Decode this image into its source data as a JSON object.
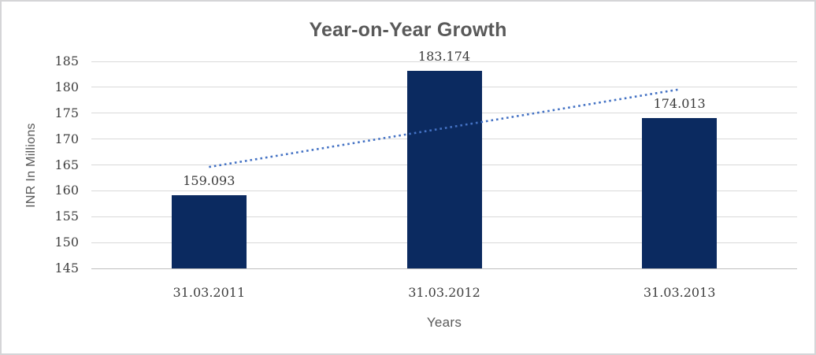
{
  "chart_data": {
    "type": "bar",
    "title": "Year-on-Year Growth",
    "categories": [
      "31.03.2011",
      "31.03.2012",
      "31.03.2013"
    ],
    "values": [
      159.093,
      183.174,
      174.013
    ],
    "data_labels": [
      "159.093",
      "183.174",
      "174.013"
    ],
    "xlabel": "Years",
    "ylabel": "INR In Millions",
    "ylim": [
      145,
      185
    ],
    "ytick_step": 5,
    "yticks": [
      145,
      150,
      155,
      160,
      165,
      170,
      175,
      180,
      185
    ],
    "grid": true,
    "legend": "none",
    "bar_color": "#0B2A60",
    "title_color": "#595959",
    "axis_title_color": "#595959",
    "tick_label_color": "#3F3F3F",
    "data_label_color": "#3A3A3A",
    "gridline_color": "#D9D9D9",
    "axis_line_color": "#BFBFBF",
    "trendline": {
      "type": "linear",
      "style": "dotted",
      "color": "#4472C4",
      "start_value": 164.6,
      "end_value": 179.6,
      "start_category_index": 0,
      "end_category_index": 2
    }
  }
}
